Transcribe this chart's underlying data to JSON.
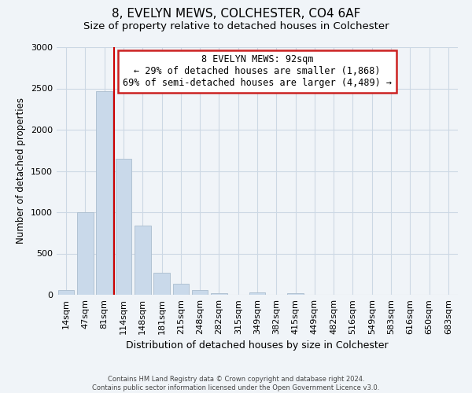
{
  "title": "8, EVELYN MEWS, COLCHESTER, CO4 6AF",
  "subtitle": "Size of property relative to detached houses in Colchester",
  "xlabel": "Distribution of detached houses by size in Colchester",
  "ylabel": "Number of detached properties",
  "bar_labels": [
    "14sqm",
    "47sqm",
    "81sqm",
    "114sqm",
    "148sqm",
    "181sqm",
    "215sqm",
    "248sqm",
    "282sqm",
    "315sqm",
    "349sqm",
    "382sqm",
    "415sqm",
    "449sqm",
    "482sqm",
    "516sqm",
    "549sqm",
    "583sqm",
    "616sqm",
    "650sqm",
    "683sqm"
  ],
  "bar_values": [
    55,
    1000,
    2470,
    1650,
    835,
    270,
    130,
    55,
    20,
    0,
    30,
    0,
    18,
    0,
    0,
    0,
    0,
    0,
    0,
    0,
    0
  ],
  "bar_color": "#c9d9ea",
  "bar_edgecolor": "#aabdce",
  "vline_color": "#cc0000",
  "annotation_text": "8 EVELYN MEWS: 92sqm\n← 29% of detached houses are smaller (1,868)\n69% of semi-detached houses are larger (4,489) →",
  "annotation_box_facecolor": "#ffffff",
  "annotation_box_edgecolor": "#cc2222",
  "ylim": [
    0,
    3000
  ],
  "yticks": [
    0,
    500,
    1000,
    1500,
    2000,
    2500,
    3000
  ],
  "grid_color": "#ccd8e4",
  "footer1": "Contains HM Land Registry data © Crown copyright and database right 2024.",
  "footer2": "Contains public sector information licensed under the Open Government Licence v3.0.",
  "background_color": "#f0f4f8",
  "plot_background": "#f0f4f8",
  "title_fontsize": 11,
  "subtitle_fontsize": 9.5,
  "ylabel_fontsize": 8.5,
  "xlabel_fontsize": 9,
  "tick_fontsize": 8,
  "annotation_fontsize": 8.5,
  "footer_fontsize": 6
}
